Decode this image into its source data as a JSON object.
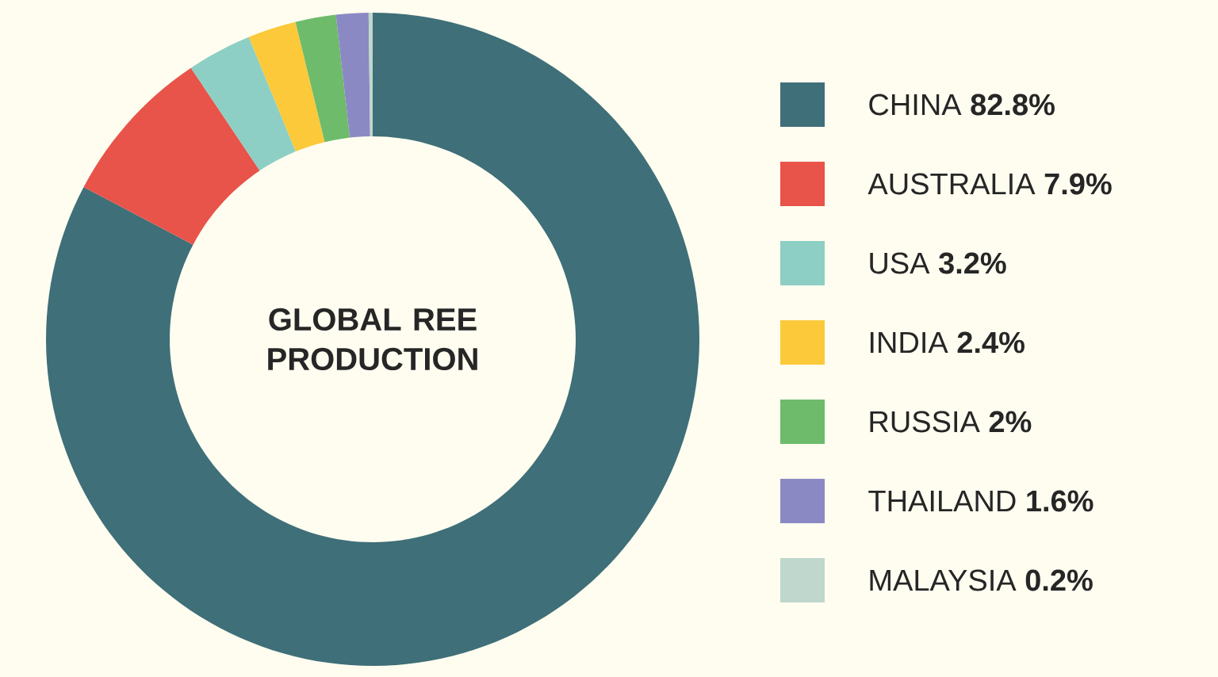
{
  "chart_data": {
    "type": "donut",
    "title": "GLOBAL REE PRODUCTION",
    "categories": [
      "CHINA",
      "AUSTRALIA",
      "USA",
      "INDIA",
      "RUSSIA",
      "THAILAND",
      "MALAYSIA"
    ],
    "values": [
      82.8,
      7.9,
      3.2,
      2.4,
      2,
      1.6,
      0.2
    ],
    "value_labels": [
      "82.8%",
      "7.9%",
      "3.2%",
      "2.4%",
      "2%",
      "1.6%",
      "0.2%"
    ],
    "colors": [
      "#3f6f78",
      "#e8534a",
      "#8dcfc4",
      "#fbc93a",
      "#6dbb6b",
      "#8b89c3",
      "#bfd7cc"
    ],
    "legend": "right"
  }
}
